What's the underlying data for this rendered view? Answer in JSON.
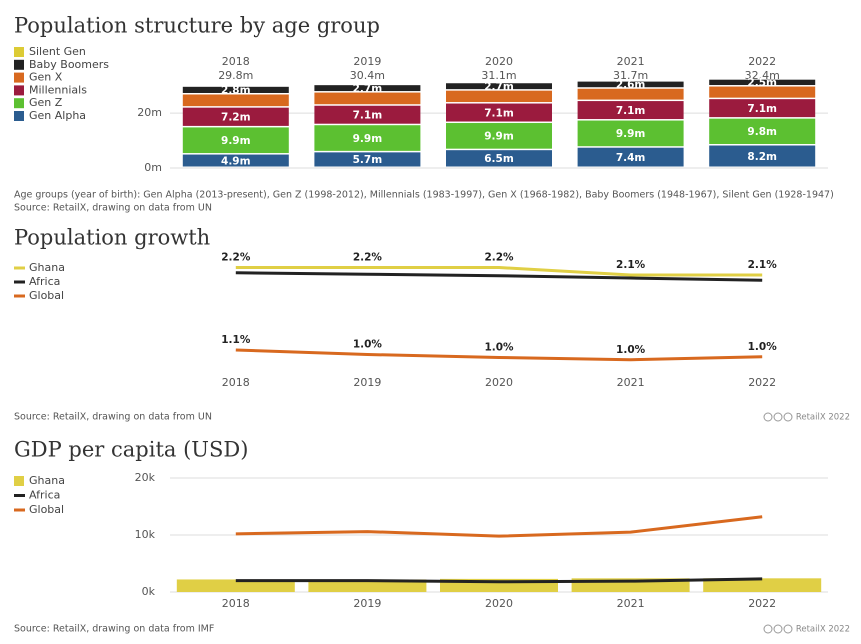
{
  "chart_data": [
    {
      "type": "stacked-bar",
      "title": "Population structure by age group",
      "categories": [
        "2018",
        "2019",
        "2020",
        "2021",
        "2022"
      ],
      "totals": [
        "29.8m",
        "30.4m",
        "31.1m",
        "31.7m",
        "32.4m"
      ],
      "series": [
        {
          "name": "Silent Gen",
          "color": "#dccb35",
          "values": [
            0.2,
            0.2,
            0.2,
            0.2,
            0.2
          ]
        },
        {
          "name": "Baby Boomers",
          "color": "#222222",
          "values": [
            2.8,
            2.7,
            2.7,
            2.6,
            2.5
          ],
          "value_labels": [
            "2.8m",
            "2.7m",
            "2.7m",
            "2.6m",
            "2.5m"
          ]
        },
        {
          "name": "Gen X",
          "color": "#d8691f",
          "values": [
            4.8,
            4.8,
            4.7,
            4.5,
            4.6
          ]
        },
        {
          "name": "Millennials",
          "color": "#9b1b3e",
          "values": [
            7.2,
            7.1,
            7.1,
            7.1,
            7.1
          ],
          "value_labels": [
            "7.2m",
            "7.1m",
            "7.1m",
            "7.1m",
            "7.1m"
          ]
        },
        {
          "name": "Gen Z",
          "color": "#5cc031",
          "values": [
            9.9,
            9.9,
            9.9,
            9.9,
            9.8
          ],
          "value_labels": [
            "9.9m",
            "9.9m",
            "9.9m",
            "9.9m",
            "9.8m"
          ]
        },
        {
          "name": "Gen Alpha",
          "color": "#2b5c8f",
          "values": [
            4.9,
            5.7,
            6.5,
            7.4,
            8.2
          ],
          "value_labels": [
            "4.9m",
            "5.7m",
            "6.5m",
            "7.4m",
            "8.2m"
          ]
        }
      ],
      "ylim": [
        0,
        35
      ],
      "yticks": [
        {
          "value": 0,
          "label": "0m"
        },
        {
          "value": 20,
          "label": "20m"
        }
      ],
      "note": "Age groups (year of birth): Gen Alpha (2013-present), Gen Z (1998-2012), Millennials (1983-1997), Gen X (1968-1982), Baby Boomers (1948-1967), Silent Gen (1928-1947)",
      "source": "Source: RetailX, drawing on data from UN"
    },
    {
      "type": "line",
      "title": "Population growth",
      "categories": [
        "2018",
        "2019",
        "2020",
        "2021",
        "2022"
      ],
      "series": [
        {
          "name": "Ghana",
          "color": "#e0cf45",
          "values": [
            2.2,
            2.2,
            2.2,
            2.1,
            2.1
          ],
          "value_labels": [
            "2.2%",
            "2.2%",
            "2.2%",
            "2.1%",
            "2.1%"
          ]
        },
        {
          "name": "Africa",
          "color": "#222222",
          "values": [
            2.13,
            2.11,
            2.09,
            2.06,
            2.03
          ]
        },
        {
          "name": "Global",
          "color": "#d8691f",
          "values": [
            1.1,
            1.04,
            1.0,
            0.97,
            1.01
          ],
          "value_labels": [
            "1.1%",
            "1.0%",
            "1.0%",
            "1.0%",
            "1.0%"
          ]
        }
      ],
      "ylim": [
        0.9,
        2.3
      ],
      "source": "Source: RetailX, drawing on data from UN",
      "credit": "RetailX 2022"
    },
    {
      "type": "combo",
      "title": "GDP per capita (USD)",
      "categories": [
        "2018",
        "2019",
        "2020",
        "2021",
        "2022"
      ],
      "series": [
        {
          "name": "Ghana",
          "type": "bar",
          "color": "#e0cf45",
          "values": [
            2200,
            2200,
            2300,
            2400,
            2400
          ]
        },
        {
          "name": "Africa",
          "type": "line",
          "color": "#222222",
          "values": [
            2000,
            2000,
            1800,
            1900,
            2300
          ]
        },
        {
          "name": "Global",
          "type": "line",
          "color": "#d8691f",
          "values": [
            10200,
            10600,
            9800,
            10500,
            13200
          ]
        }
      ],
      "ylim": [
        0,
        20000
      ],
      "yticks": [
        {
          "value": 0,
          "label": "0k"
        },
        {
          "value": 10000,
          "label": "10k"
        },
        {
          "value": 20000,
          "label": "20k"
        }
      ],
      "grid": true,
      "source": "Source: RetailX, drawing on data from IMF",
      "credit": "RetailX 2022"
    }
  ]
}
